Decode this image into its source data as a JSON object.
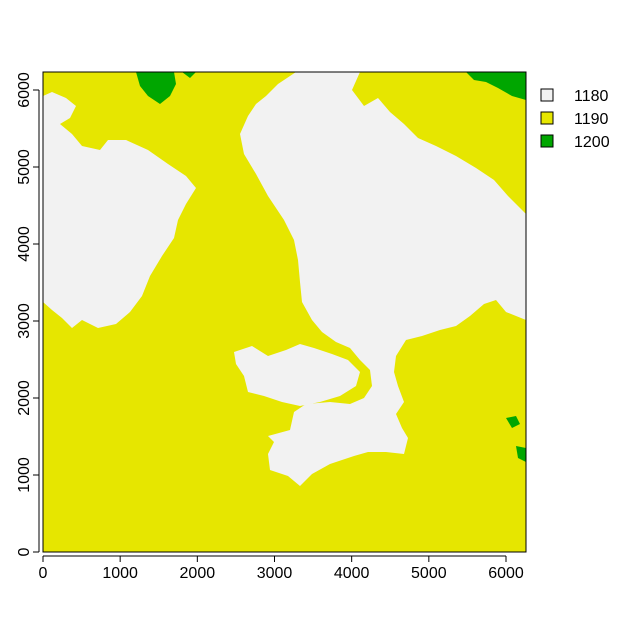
{
  "map": {
    "x_axis": {
      "ticks": [
        {
          "value": 0,
          "label": "0"
        },
        {
          "value": 1000,
          "label": "1000"
        },
        {
          "value": 2000,
          "label": "2000"
        },
        {
          "value": 3000,
          "label": "3000"
        },
        {
          "value": 4000,
          "label": "4000"
        },
        {
          "value": 5000,
          "label": "5000"
        },
        {
          "value": 6000,
          "label": "6000"
        }
      ]
    },
    "y_axis": {
      "ticks": [
        {
          "value": 0,
          "label": "0"
        },
        {
          "value": 1000,
          "label": "1000"
        },
        {
          "value": 2000,
          "label": "2000"
        },
        {
          "value": 3000,
          "label": "3000"
        },
        {
          "value": 4000,
          "label": "4000"
        },
        {
          "value": 5000,
          "label": "5000"
        },
        {
          "value": 6000,
          "label": "6000"
        }
      ]
    },
    "legend": [
      {
        "label": "1180",
        "color": "#f2f2f2"
      },
      {
        "label": "1190",
        "color": "#e6e600"
      },
      {
        "label": "1200",
        "color": "#00a600"
      }
    ],
    "legend_position": "right",
    "background_class": "1190"
  },
  "chart_data": {
    "type": "heatmap",
    "categories": [
      "1180",
      "1190",
      "1200"
    ],
    "xlim": [
      0,
      6250
    ],
    "ylim": [
      0,
      6250
    ],
    "grid": false,
    "legend_position": "right"
  }
}
